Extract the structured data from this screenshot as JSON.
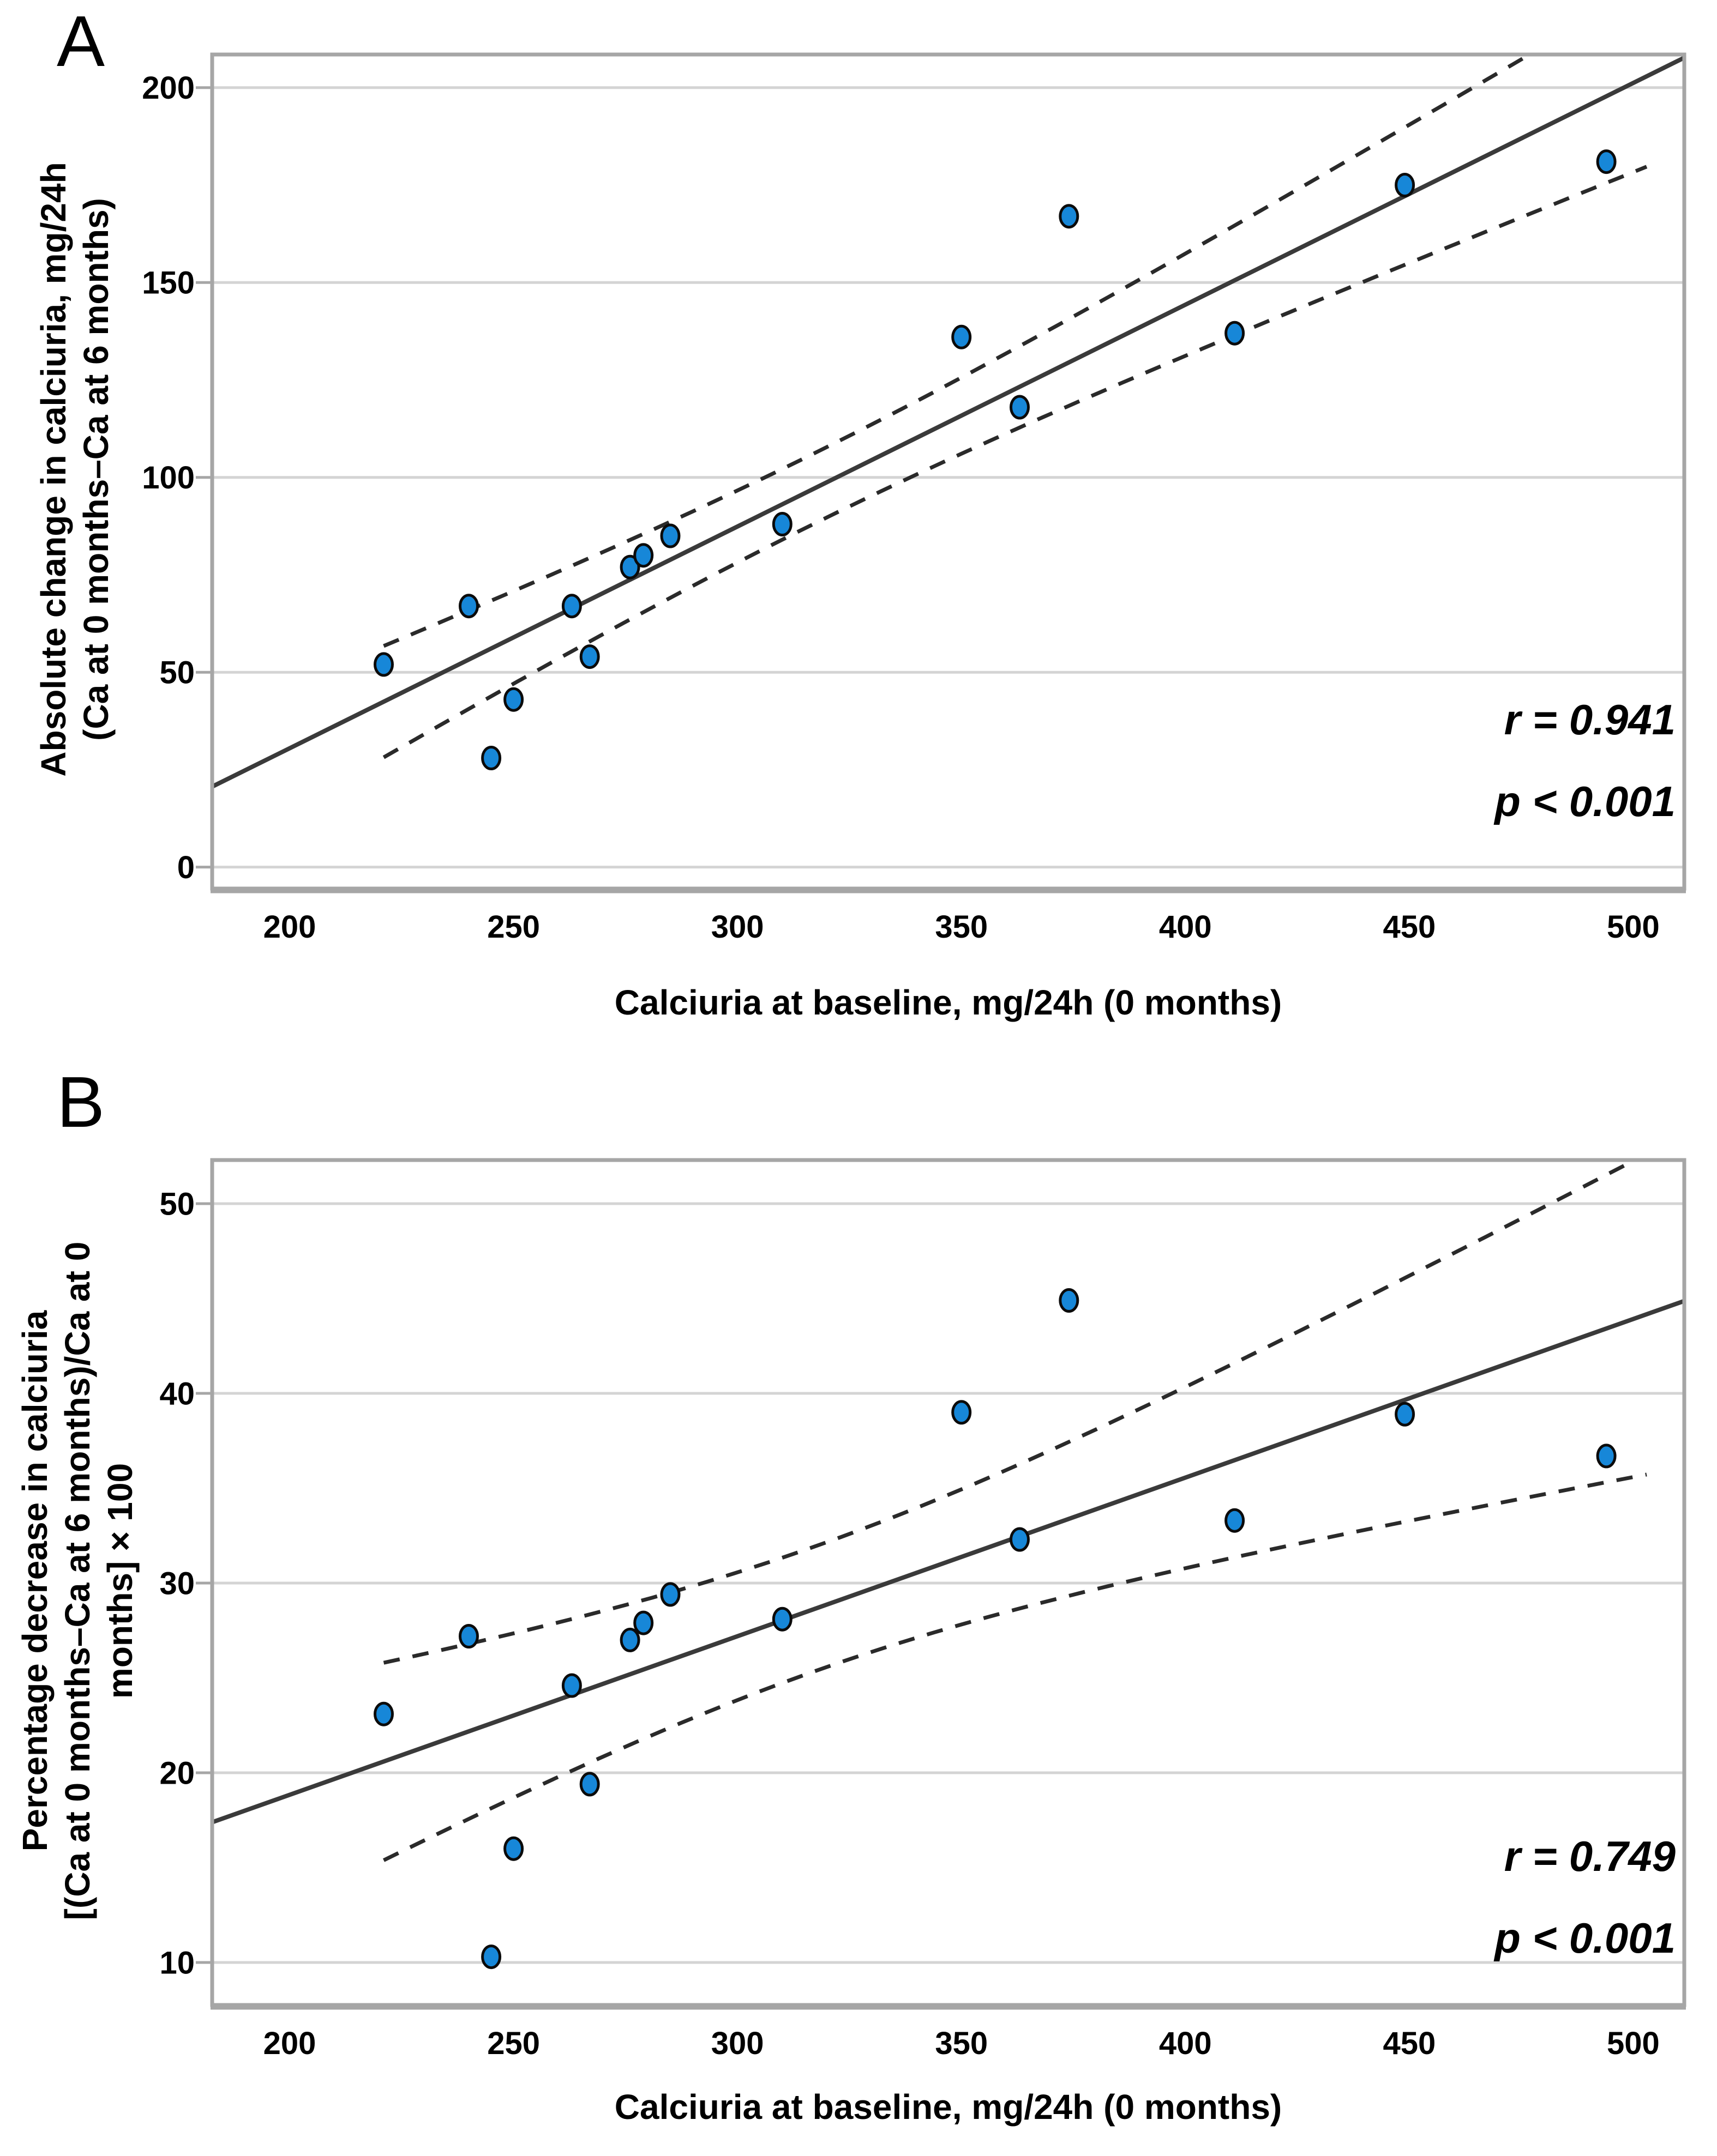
{
  "figure": {
    "panel_a": {
      "label": "A",
      "y_title_line1": "Absolute change in calciuria, mg/24h",
      "y_title_line2": "(Ca at 0 months–Ca at 6 months)",
      "x_title": "Calciuria at baseline, mg/24h (0 months)",
      "r_label": "r = 0.941",
      "p_label": "p < 0.001"
    },
    "panel_b": {
      "label": "B",
      "y_title_line1": "Percentage decrease in calciuria",
      "y_title_line2": "[(Ca at 0 months–Ca at 6 months)/Ca at 0",
      "y_title_line3": "months] × 100",
      "x_title": "Calciuria at baseline, mg/24h (0 months)",
      "r_label": "r = 0.749",
      "p_label": "p < 0.001"
    },
    "colors": {
      "marker_fill": "#1787D8",
      "marker_stroke": "#0b0b0b",
      "regression_line": "#3a3a3a",
      "ci_line": "#2a2a2a",
      "grid": "#d4d4d4",
      "frame": "#a6a6a6",
      "text": "#000000"
    }
  },
  "chart_data": [
    {
      "type": "scatter",
      "panel": "A",
      "title": "",
      "xlabel": "Calciuria at baseline, mg/24h (0 months)",
      "ylabel": "Absolute change in calciuria, mg/24h (Ca at 0 months–Ca at 6 months)",
      "xlim": [
        182.7,
        511.4
      ],
      "ylim": [
        -5.5,
        208.5
      ],
      "x_ticks": [
        200,
        250,
        300,
        350,
        400,
        450,
        500
      ],
      "y_ticks": [
        0,
        50,
        100,
        150,
        200
      ],
      "grid": "horizontal",
      "legend": "none",
      "points": [
        [
          221,
          52
        ],
        [
          240,
          67
        ],
        [
          245,
          28
        ],
        [
          250,
          43
        ],
        [
          263,
          67
        ],
        [
          267,
          54
        ],
        [
          276,
          77
        ],
        [
          279,
          80
        ],
        [
          285,
          85
        ],
        [
          310,
          88
        ],
        [
          350,
          136
        ],
        [
          363,
          118
        ],
        [
          374,
          167
        ],
        [
          411,
          137
        ],
        [
          449,
          175
        ],
        [
          494,
          181
        ]
      ],
      "regression": {
        "slope": 0.569,
        "intercept": -83.3
      },
      "ci": {
        "factor": 36.1,
        "n": 16,
        "mean_x": 317.3,
        "sxx": 98472,
        "x_start": 221,
        "x_end": 504
      },
      "r": 0.941,
      "p": "< 0.001"
    },
    {
      "type": "scatter",
      "panel": "B",
      "title": "",
      "xlabel": "Calciuria at baseline, mg/24h (0 months)",
      "ylabel": "Percentage decrease in calciuria [(Ca at 0 months–Ca at 6 months)/Ca at 0 months] × 100",
      "xlim": [
        182.7,
        511.4
      ],
      "ylim": [
        7.76,
        52.3
      ],
      "x_ticks": [
        200,
        250,
        300,
        350,
        400,
        450,
        500
      ],
      "y_ticks": [
        10,
        20,
        30,
        40,
        50
      ],
      "grid": "horizontal",
      "legend": "none",
      "points": [
        [
          221,
          23.1
        ],
        [
          240,
          27.2
        ],
        [
          245,
          10.3
        ],
        [
          250,
          16.0
        ],
        [
          263,
          24.6
        ],
        [
          267,
          19.4
        ],
        [
          276,
          27.0
        ],
        [
          279,
          27.9
        ],
        [
          285,
          29.4
        ],
        [
          310,
          28.1
        ],
        [
          350,
          39.0
        ],
        [
          363,
          32.3
        ],
        [
          374,
          44.9
        ],
        [
          411,
          33.3
        ],
        [
          449,
          38.9
        ],
        [
          494,
          36.7
        ]
      ],
      "regression": {
        "slope": 0.0836,
        "intercept": 2.12
      },
      "ci": {
        "factor": 13.15,
        "n": 16,
        "mean_x": 317.3,
        "sxx": 98472,
        "x_start": 221,
        "x_end": 504
      },
      "r": 0.749,
      "p": "< 0.001"
    }
  ]
}
